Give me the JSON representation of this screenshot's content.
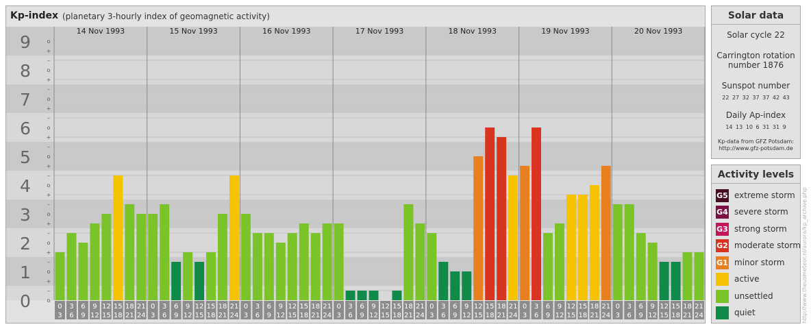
{
  "header": {
    "title": "Kp-index",
    "subtitle": "(planetary 3-hourly index of geomagnetic activity)"
  },
  "colors": {
    "quiet": "#0f8a48",
    "unsettled": "#7ac42a",
    "active": "#f5c300",
    "G1": "#e88020",
    "G2": "#d83420",
    "G3": "#c2185b",
    "G4": "#7a1040",
    "G5": "#4a0e20",
    "panel_bg": "#e2e2e2",
    "band_dark": "#c9c9c9",
    "band_light": "#d8d8d8"
  },
  "chart_data": {
    "type": "bar",
    "title": "Kp-index",
    "ylim": [
      0,
      9
    ],
    "y_ticks": [
      "0",
      "1",
      "2",
      "3",
      "4",
      "5",
      "6",
      "7",
      "8",
      "9"
    ],
    "sub_ticks": [
      "+",
      "o",
      "–"
    ],
    "days": [
      "14 Nov 1993",
      "15 Nov 1993",
      "16 Nov 1993",
      "17 Nov 1993",
      "18 Nov 1993",
      "19 Nov 1993",
      "20 Nov 1993"
    ],
    "hour_labels_top": [
      "0",
      "3",
      "6",
      "9",
      "12",
      "15",
      "18",
      "21"
    ],
    "hour_labels_bottom": [
      "3",
      "6",
      "9",
      "12",
      "15",
      "18",
      "21",
      "24"
    ],
    "values": [
      1.667,
      2.333,
      2.0,
      2.667,
      3.0,
      4.333,
      3.333,
      3.0,
      3.0,
      3.333,
      1.333,
      1.667,
      1.333,
      1.667,
      3.0,
      4.333,
      3.0,
      2.333,
      2.333,
      2.0,
      2.333,
      2.667,
      2.333,
      2.667,
      2.667,
      0.333,
      0.333,
      0.333,
      0.0,
      0.333,
      3.333,
      2.667,
      2.333,
      1.333,
      1.0,
      1.0,
      5.0,
      6.0,
      5.667,
      4.333,
      4.667,
      6.0,
      2.333,
      2.667,
      3.667,
      3.667,
      4.0,
      4.667,
      3.333,
      3.333,
      2.333,
      2.0,
      1.333,
      1.333,
      1.667,
      1.667
    ],
    "levels": [
      "unsettled",
      "unsettled",
      "unsettled",
      "unsettled",
      "unsettled",
      "active",
      "unsettled",
      "unsettled",
      "unsettled",
      "unsettled",
      "quiet",
      "unsettled",
      "quiet",
      "unsettled",
      "unsettled",
      "active",
      "unsettled",
      "unsettled",
      "unsettled",
      "unsettled",
      "unsettled",
      "unsettled",
      "unsettled",
      "unsettled",
      "unsettled",
      "quiet",
      "quiet",
      "quiet",
      "quiet",
      "quiet",
      "unsettled",
      "unsettled",
      "unsettled",
      "quiet",
      "quiet",
      "quiet",
      "G1",
      "G2",
      "G2",
      "active",
      "G1",
      "G2",
      "unsettled",
      "unsettled",
      "active",
      "active",
      "active",
      "G1",
      "unsettled",
      "unsettled",
      "unsettled",
      "unsettled",
      "quiet",
      "quiet",
      "unsettled",
      "unsettled"
    ]
  },
  "solar": {
    "title": "Solar data",
    "cycle": "Solar cycle 22",
    "carrington_line1": "Carrington rotation",
    "carrington_line2": "number 1876",
    "sunspot_label": "Sunspot number",
    "sunspot_values": "22 27 32 37 37 42 43",
    "ap_label": "Daily Ap-index",
    "ap_values": "14 13 10 6 31 31 9",
    "source_line1": "Kp-data from GFZ Potsdam:",
    "source_line2": "http://www.gfz-potsdam.de"
  },
  "activity": {
    "title": "Activity levels",
    "levels": [
      {
        "code": "G5",
        "label": "extreme storm",
        "color": "#4a0e20"
      },
      {
        "code": "G4",
        "label": "severe storm",
        "color": "#7a1040"
      },
      {
        "code": "G3",
        "label": "strong storm",
        "color": "#c2185b"
      },
      {
        "code": "G2",
        "label": "moderate storm",
        "color": "#d83420"
      },
      {
        "code": "G1",
        "label": "minor storm",
        "color": "#e88020"
      },
      {
        "code": "",
        "label": "active",
        "color": "#f5c300"
      },
      {
        "code": "",
        "label": "unsettled",
        "color": "#7ac42a"
      },
      {
        "code": "",
        "label": "quiet",
        "color": "#0f8a48"
      }
    ]
  },
  "credit": "http://www.theusmeteor.nl/aurora/kp_archive.php"
}
